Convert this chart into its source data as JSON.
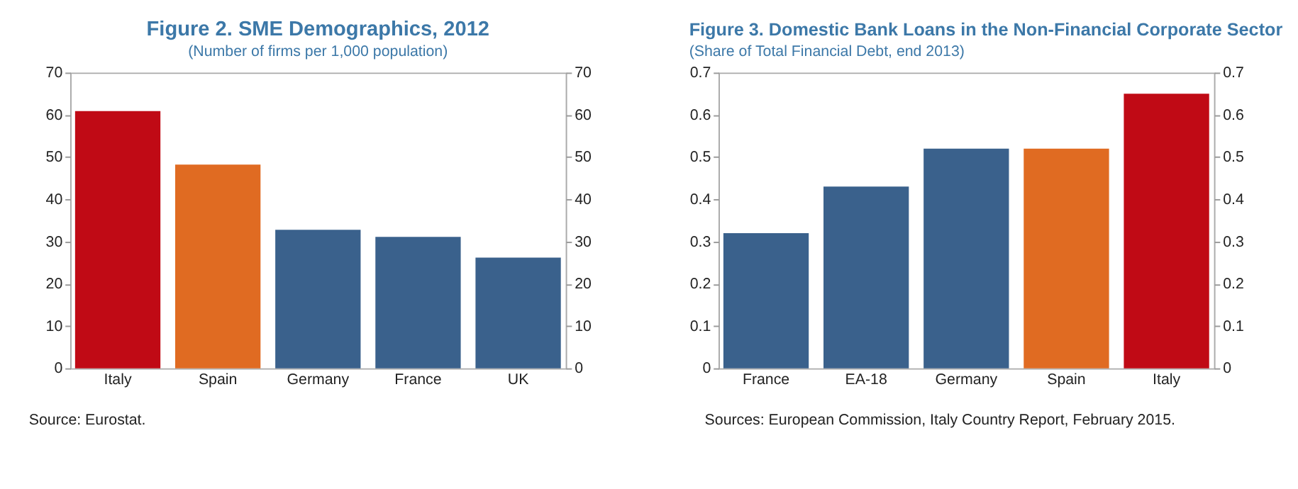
{
  "chart_data": [
    {
      "type": "bar",
      "title": "Figure 2. SME Demographics, 2012",
      "subtitle": "(Number of firms per 1,000 population)",
      "categories": [
        "Italy",
        "Spain",
        "Germany",
        "France",
        "UK"
      ],
      "values": [
        60.9,
        48.2,
        32.8,
        31.1,
        26.2
      ],
      "colors": [
        "#c00a15",
        "#e06b22",
        "#3a618c",
        "#3a618c",
        "#3a618c"
      ],
      "ylim": [
        0,
        70
      ],
      "yticks": [
        0,
        10,
        20,
        30,
        40,
        50,
        60,
        70
      ],
      "y2lim": [
        0,
        70
      ],
      "y2ticks": [
        0,
        10,
        20,
        30,
        40,
        50,
        60,
        70
      ],
      "grid": false,
      "annotations": [
        "Source: Eurostat."
      ]
    },
    {
      "type": "bar",
      "title": "Figure 3. Domestic Bank Loans in the Non-Financial Corporate Sector",
      "subtitle": "(Share of Total Financial Debt, end 2013)",
      "categories": [
        "France",
        "EA-18",
        "Germany",
        "Spain",
        "Italy"
      ],
      "values": [
        0.32,
        0.43,
        0.52,
        0.52,
        0.65
      ],
      "colors": [
        "#3a618c",
        "#3a618c",
        "#3a618c",
        "#e06b22",
        "#c00a15"
      ],
      "ylim": [
        0,
        0.7
      ],
      "yticks": [
        0,
        0.1,
        0.2,
        0.3,
        0.4,
        0.5,
        0.6,
        0.7
      ],
      "y2lim": [
        0,
        0.7
      ],
      "y2ticks": [
        0,
        0.1,
        0.2,
        0.3,
        0.4,
        0.5,
        0.6,
        0.7
      ],
      "grid": false,
      "annotations": [
        "Sources: European Commission, Italy Country Report, February 2015."
      ]
    }
  ]
}
